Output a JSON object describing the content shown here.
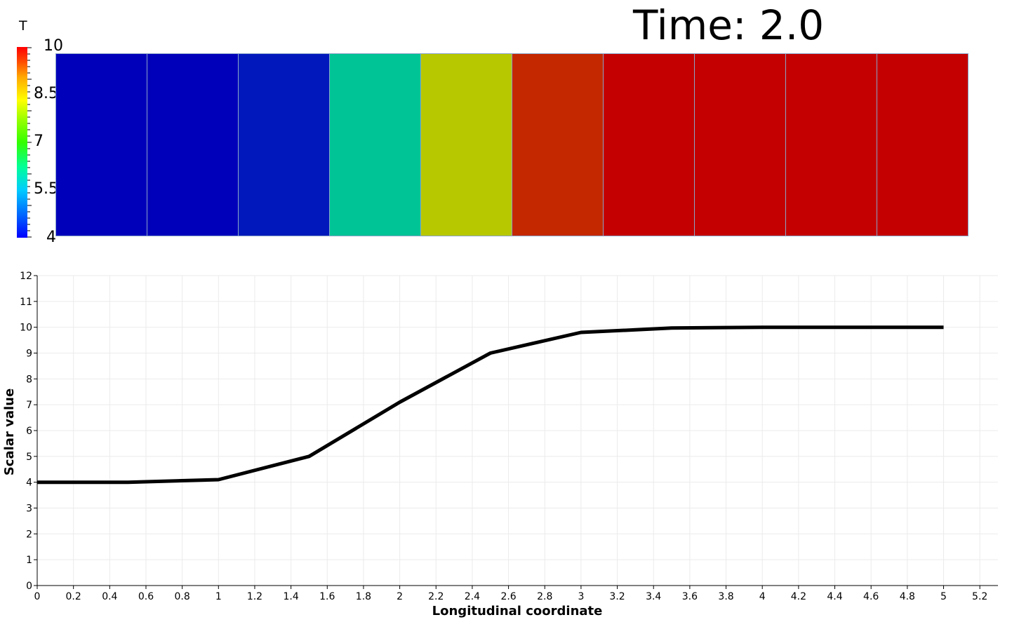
{
  "time_label": "Time: 2.0",
  "colorbar": {
    "title": "T",
    "labels": [
      "10",
      "8.5",
      "7",
      "5.5",
      "4"
    ],
    "range": [
      4,
      10
    ]
  },
  "mesh": {
    "cell_colors": [
      "#0000bb",
      "#0000bb",
      "#0119bc",
      "#00c495",
      "#b8c800",
      "#c42800",
      "#c40000",
      "#c40000",
      "#c40000",
      "#c40000"
    ]
  },
  "chart_data": {
    "type": "line",
    "xlabel": "Longitudinal coordinate",
    "ylabel": "Scalar value",
    "xlim": [
      0,
      5.3
    ],
    "ylim": [
      0,
      12
    ],
    "x_ticks": [
      "0",
      "0.2",
      "0.4",
      "0.6",
      "0.8",
      "1",
      "1.2",
      "1.4",
      "1.6",
      "1.8",
      "2",
      "2.2",
      "2.4",
      "2.6",
      "2.8",
      "3",
      "3.2",
      "3.4",
      "3.6",
      "3.8",
      "4",
      "4.2",
      "4.4",
      "4.6",
      "4.8",
      "5",
      "5.2"
    ],
    "y_ticks": [
      "0",
      "1",
      "2",
      "3",
      "4",
      "5",
      "6",
      "7",
      "8",
      "9",
      "10",
      "11",
      "12"
    ],
    "grid": true,
    "series": [
      {
        "color": "#000000",
        "x": [
          0,
          0.5,
          1.0,
          1.5,
          2.0,
          2.5,
          3.0,
          3.5,
          4.0,
          4.5,
          5.0
        ],
        "y": [
          4.0,
          4.0,
          4.1,
          5.0,
          7.1,
          9.0,
          9.8,
          9.97,
          10.0,
          10.0,
          10.0
        ]
      }
    ]
  }
}
